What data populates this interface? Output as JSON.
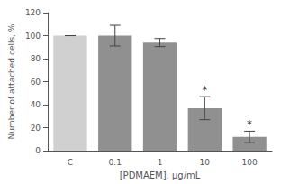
{
  "chart_data": {
    "type": "bar",
    "xlabel": "[PDMAEM], µg/mL",
    "ylabel": "Number of attached cells, %",
    "categories": [
      "C",
      "0.1",
      "1",
      "10",
      "100"
    ],
    "values": [
      100,
      100,
      94,
      37,
      12
    ],
    "errors": [
      0,
      9,
      3.5,
      10,
      5
    ],
    "colors": [
      "#d0d0d0",
      "#909090",
      "#909090",
      "#909090",
      "#909090"
    ],
    "annotations": [
      {
        "category": "10",
        "text": "*"
      },
      {
        "category": "100",
        "text": "*"
      }
    ],
    "ylim": [
      0,
      120
    ],
    "yticks": [
      0,
      20,
      40,
      60,
      80,
      100,
      120
    ],
    "grid": false
  }
}
